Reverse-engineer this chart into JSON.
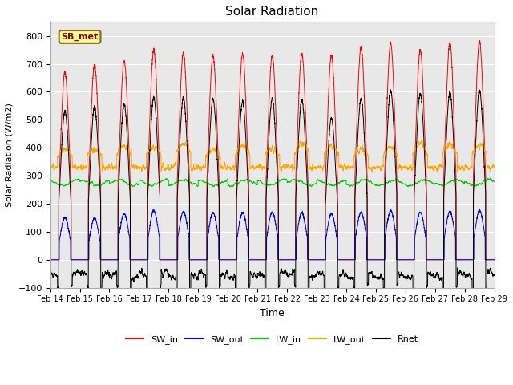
{
  "title": "Solar Radiation",
  "xlabel": "Time",
  "ylabel": "Solar Radiation (W/m2)",
  "annotation": "SB_met",
  "ylim": [
    -100,
    850
  ],
  "yticks": [
    -100,
    0,
    100,
    200,
    300,
    400,
    500,
    600,
    700,
    800
  ],
  "n_days": 15,
  "points_per_day": 288,
  "sw_in_peak_heights": [
    670,
    695,
    710,
    750,
    740,
    730,
    735,
    730,
    735,
    730,
    760,
    775,
    750,
    775,
    780
  ],
  "sw_out_peak_heights": [
    150,
    148,
    165,
    175,
    172,
    168,
    168,
    170,
    168,
    165,
    170,
    175,
    170,
    172,
    175
  ],
  "lw_in_base": 275,
  "lw_out_base": 330,
  "rnet_peak_heights": [
    530,
    545,
    555,
    580,
    578,
    575,
    565,
    575,
    570,
    505,
    575,
    605,
    593,
    598,
    605
  ],
  "colors": {
    "SW_in": "#ff0000",
    "SW_out": "#0000ff",
    "LW_in": "#00cc00",
    "LW_out": "#ffa500",
    "Rnet": "#000000",
    "background": "#e8e8e8",
    "annotation_bg": "#ffff99",
    "annotation_border": "#8b6914"
  },
  "legend_entries": [
    "SW_in",
    "SW_out",
    "LW_in",
    "LW_out",
    "Rnet"
  ],
  "xtick_labels": [
    "Feb 14",
    "Feb 15",
    "Feb 16",
    "Feb 17",
    "Feb 18",
    "Feb 19",
    "Feb 20",
    "Feb 21",
    "Feb 22",
    "Feb 23",
    "Feb 24",
    "Feb 25",
    "Feb 26",
    "Feb 27",
    "Feb 28",
    "Feb 29"
  ]
}
